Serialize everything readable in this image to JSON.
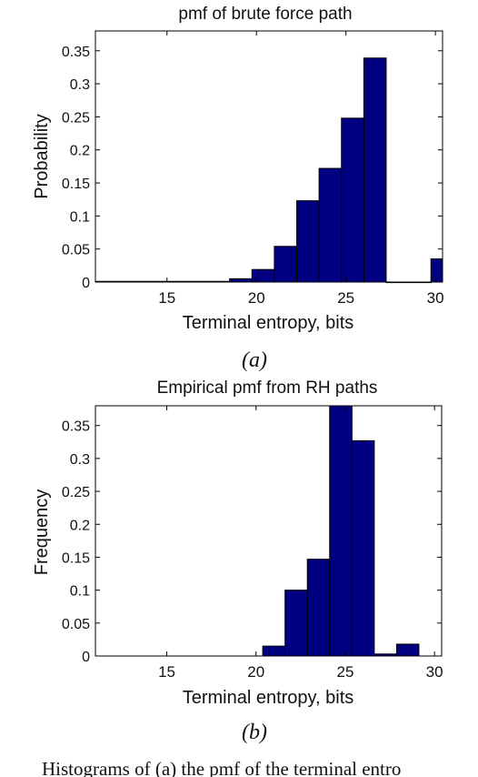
{
  "chart_data": [
    {
      "type": "bar",
      "title": "pmf of brute force path",
      "xlabel": "Terminal entropy, bits",
      "ylabel": "Probability",
      "panel_label": "(a)",
      "xlim": [
        11,
        30.4
      ],
      "ylim": [
        0,
        0.38
      ],
      "xticks": [
        15,
        20,
        25,
        30
      ],
      "yticks": [
        0,
        0.05,
        0.1,
        0.15,
        0.2,
        0.25,
        0.3,
        0.35
      ],
      "ytick_labels": [
        "0",
        "0.05",
        "0.1",
        "0.15",
        "0.2",
        "0.25",
        "0.3",
        "0.35"
      ],
      "bin_width": 1.25,
      "bin_centers": [
        11.625,
        12.875,
        14.125,
        15.375,
        16.625,
        17.875,
        19.125,
        20.375,
        21.625,
        22.875,
        24.125,
        25.375,
        26.625,
        27.875,
        29.125,
        30.375
      ],
      "values": [
        0.001,
        0.001,
        0.001,
        0.001,
        0.001,
        0.001,
        0.005,
        0.019,
        0.054,
        0.123,
        0.172,
        0.248,
        0.339,
        0.0,
        0.0,
        0.035
      ],
      "bar_color": "#000080",
      "grid": false
    },
    {
      "type": "bar",
      "title": "Empirical pmf from RH paths",
      "xlabel": "Terminal entropy, bits",
      "ylabel": "Frequency",
      "panel_label": "(b)",
      "xlim": [
        11,
        30.4
      ],
      "ylim": [
        0,
        0.38
      ],
      "xticks": [
        15,
        20,
        25,
        30
      ],
      "yticks": [
        0,
        0.05,
        0.1,
        0.15,
        0.2,
        0.25,
        0.3,
        0.35
      ],
      "ytick_labels": [
        "0",
        "0.05",
        "0.1",
        "0.15",
        "0.2",
        "0.25",
        "0.3",
        "0.35"
      ],
      "bin_width": 1.25,
      "bin_centers": [
        21.0,
        22.25,
        23.5,
        24.75,
        26.0,
        27.25,
        28.5
      ],
      "values": [
        0.015,
        0.1,
        0.147,
        0.38,
        0.327,
        0.003,
        0.018
      ],
      "bar_color": "#000080",
      "grid": false
    }
  ],
  "caption_fragment": "Histograms of (a) the pmf of the terminal entro"
}
